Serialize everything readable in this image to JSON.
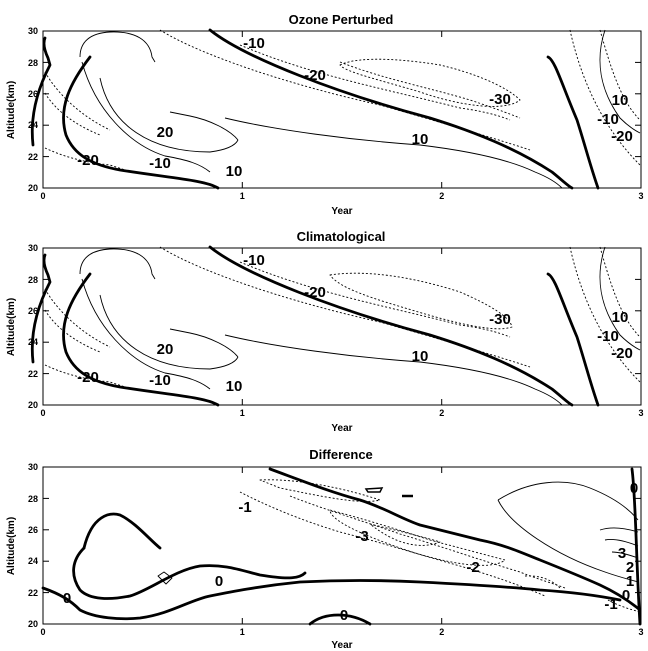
{
  "chart_data": [
    {
      "type": "contour",
      "title": "Ozone Perturbed",
      "xlabel": "Year",
      "ylabel": "Altitude(km)",
      "xlim": [
        0,
        3
      ],
      "ylim": [
        20,
        30
      ],
      "xticks": [
        "0",
        "1",
        "2",
        "3"
      ],
      "yticks": [
        "20",
        "22",
        "24",
        "26",
        "28",
        "30"
      ],
      "contour_labels": [
        {
          "text": "-10",
          "x": 1.05,
          "y": 28.7
        },
        {
          "text": "-20",
          "x": 1.35,
          "y": 27.5
        },
        {
          "text": "-30",
          "x": 2.3,
          "y": 25.6
        },
        {
          "text": "20",
          "x": 0.6,
          "y": 23.5
        },
        {
          "text": "10",
          "x": 0.95,
          "y": 21.5
        },
        {
          "text": "-10",
          "x": 0.58,
          "y": 21.8
        },
        {
          "text": "-20",
          "x": 0.22,
          "y": 22.0
        },
        {
          "text": "10",
          "x": 1.9,
          "y": 23.2
        },
        {
          "text": "10",
          "x": 2.9,
          "y": 25.4
        },
        {
          "text": "-10",
          "x": 2.85,
          "y": 23.8
        },
        {
          "text": "-20",
          "x": 2.9,
          "y": 22.6
        }
      ]
    },
    {
      "type": "contour",
      "title": "Climatological",
      "xlabel": "Year",
      "ylabel": "Altitude(km)",
      "xlim": [
        0,
        3
      ],
      "ylim": [
        20,
        30
      ],
      "xticks": [
        "0",
        "1",
        "2",
        "3"
      ],
      "yticks": [
        "20",
        "22",
        "24",
        "26",
        "28",
        "30"
      ],
      "contour_labels": [
        {
          "text": "-10",
          "x": 1.05,
          "y": 28.7
        },
        {
          "text": "-20",
          "x": 1.35,
          "y": 27.5
        },
        {
          "text": "-30",
          "x": 2.3,
          "y": 25.4
        },
        {
          "text": "20",
          "x": 0.6,
          "y": 23.5
        },
        {
          "text": "10",
          "x": 0.95,
          "y": 21.6
        },
        {
          "text": "-10",
          "x": 0.58,
          "y": 21.8
        },
        {
          "text": "-20",
          "x": 0.22,
          "y": 22.0
        },
        {
          "text": "10",
          "x": 1.9,
          "y": 23.2
        },
        {
          "text": "10",
          "x": 2.9,
          "y": 25.4
        },
        {
          "text": "-10",
          "x": 2.85,
          "y": 23.8
        },
        {
          "text": "-20",
          "x": 2.9,
          "y": 22.6
        }
      ]
    },
    {
      "type": "contour",
      "title": "Difference",
      "xlabel": "Year",
      "ylabel": "Altitude(km)",
      "xlim": [
        0,
        3
      ],
      "ylim": [
        20,
        30
      ],
      "xticks": [
        "0",
        "1",
        "2",
        "3"
      ],
      "yticks": [
        "20",
        "22",
        "24",
        "26",
        "28",
        "30"
      ],
      "contour_labels": [
        {
          "text": "-1",
          "x": 1.02,
          "y": 27.8
        },
        {
          "text": "-3",
          "x": 1.6,
          "y": 25.8
        },
        {
          "text": "-2",
          "x": 2.15,
          "y": 23.7
        },
        {
          "text": "0",
          "x": 0.88,
          "y": 22.6
        },
        {
          "text": "0",
          "x": 0.12,
          "y": 21.0
        },
        {
          "text": "0",
          "x": 1.5,
          "y": 20.4
        },
        {
          "text": "0",
          "x": 2.95,
          "y": 29.2
        },
        {
          "text": "3",
          "x": 2.92,
          "y": 24.5
        },
        {
          "text": "2",
          "x": 2.96,
          "y": 23.6
        },
        {
          "text": "1",
          "x": 2.96,
          "y": 22.7
        },
        {
          "text": "0",
          "x": 2.94,
          "y": 21.8
        },
        {
          "text": "-1",
          "x": 2.86,
          "y": 21.0
        }
      ]
    }
  ]
}
